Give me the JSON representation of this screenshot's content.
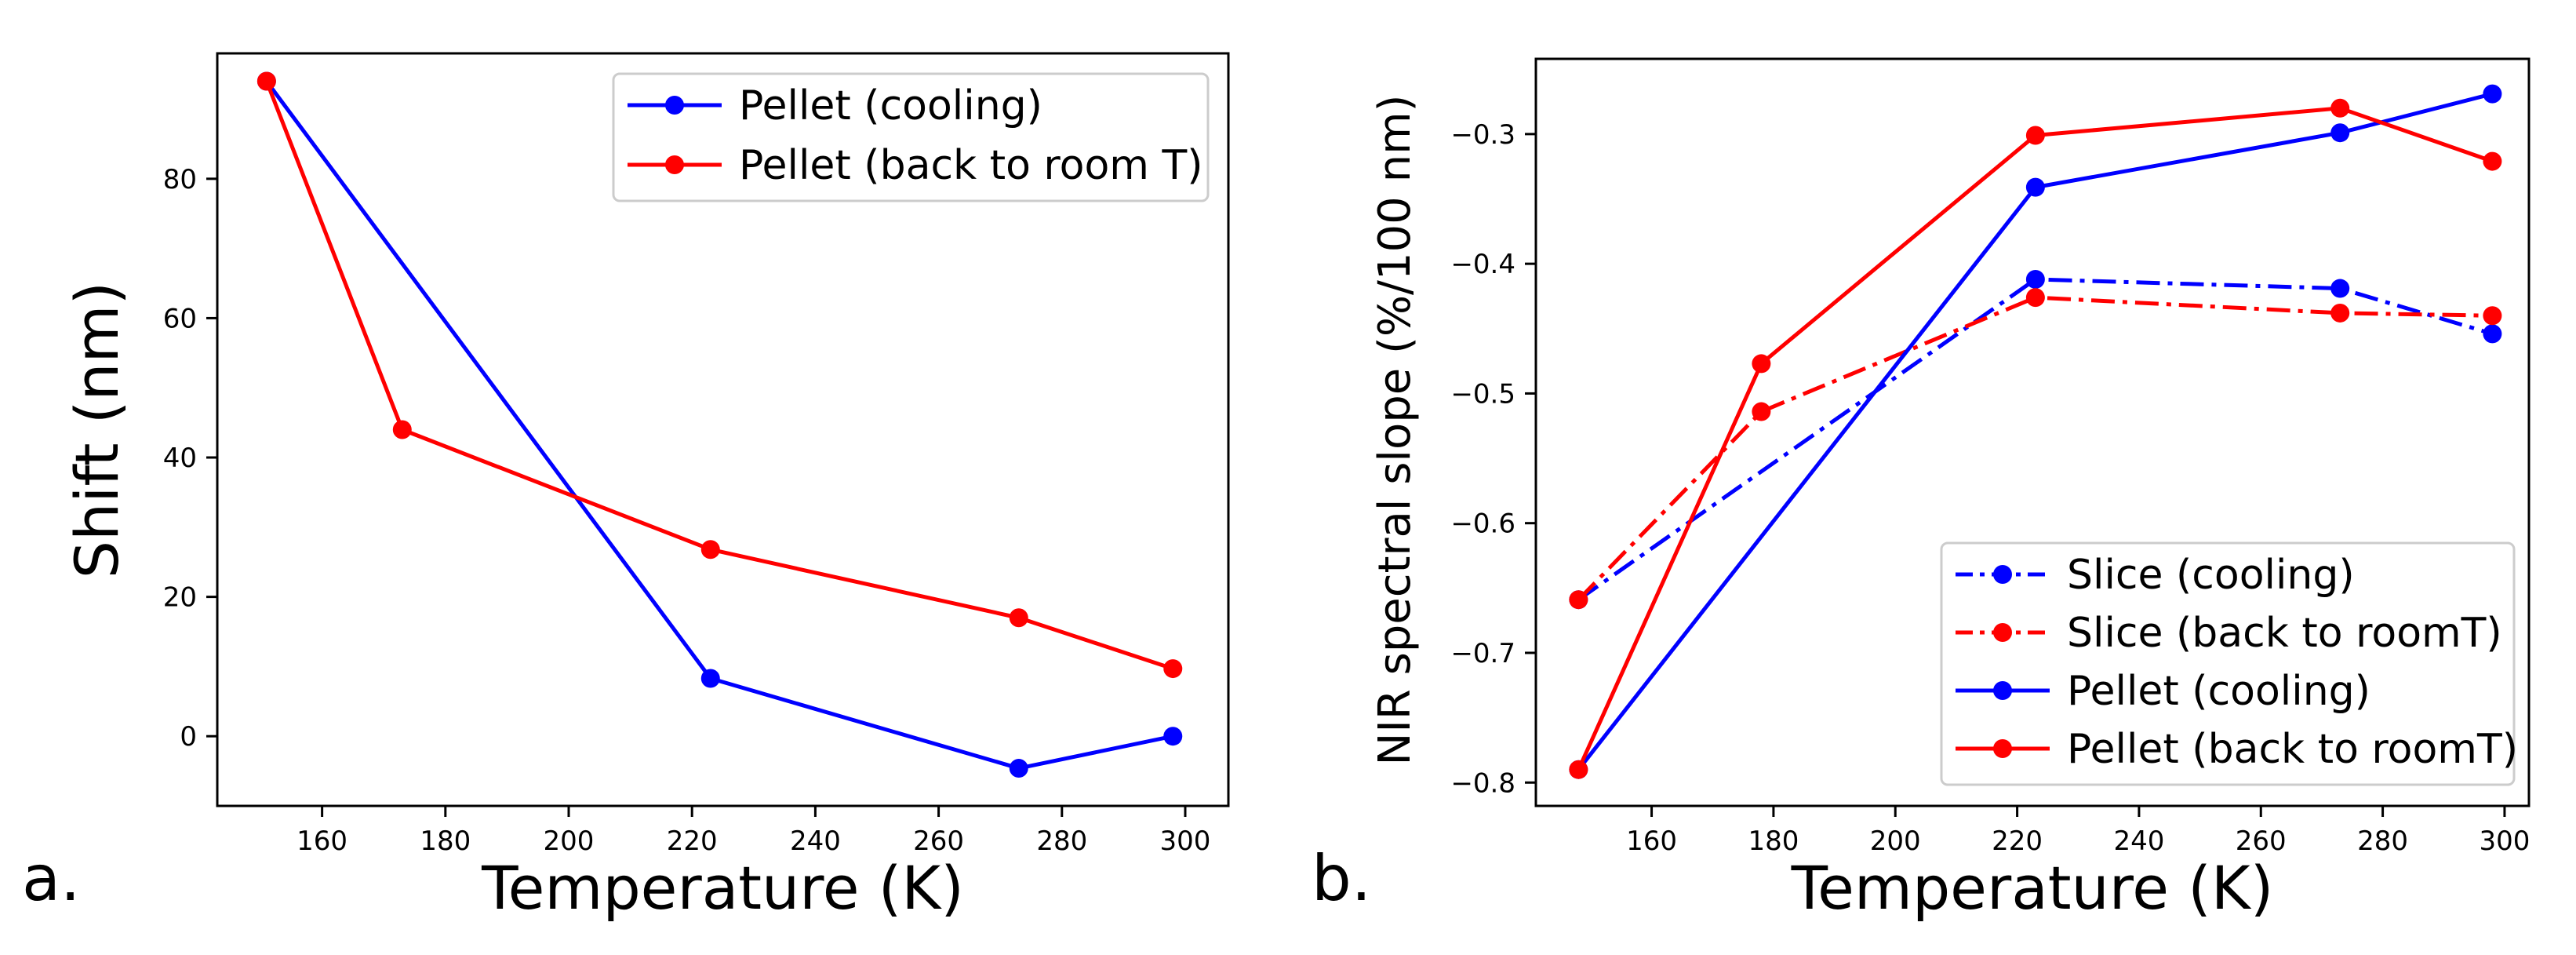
{
  "chart_data": [
    {
      "panel_label": "a.",
      "type": "line",
      "title": "",
      "xlabel": "Temperature (K)",
      "ylabel": "Shift (nm)",
      "xlim": [
        143,
        307
      ],
      "ylim": [
        -10,
        98
      ],
      "xticks": [
        160,
        180,
        200,
        220,
        240,
        260,
        280,
        300
      ],
      "xtick_labels": [
        "160",
        "180",
        "200",
        "220",
        "240",
        "260",
        "280",
        "300"
      ],
      "yticks": [
        0,
        20,
        40,
        60,
        80
      ],
      "ytick_labels": [
        "0",
        "20",
        "40",
        "60",
        "80"
      ],
      "grid": false,
      "legend_position": "top-right",
      "series": [
        {
          "name": "Pellet (cooling)",
          "color": "#0000ff",
          "linestyle": "solid",
          "x": [
            151,
            223,
            273,
            298
          ],
          "y": [
            94,
            8.3,
            -4.6,
            0
          ]
        },
        {
          "name": "Pellet (back to room T)",
          "color": "#ff0000",
          "linestyle": "solid",
          "x": [
            151,
            173,
            223,
            273,
            298
          ],
          "y": [
            94,
            44,
            26.8,
            17,
            9.7
          ]
        }
      ]
    },
    {
      "panel_label": "b.",
      "type": "line",
      "title": "",
      "xlabel": "Temperature (K)",
      "ylabel": "NIR spectral slope (%/100 nm)",
      "xlim": [
        141,
        304
      ],
      "ylim": [
        -0.818,
        -0.242
      ],
      "xticks": [
        160,
        180,
        200,
        220,
        240,
        260,
        280,
        300
      ],
      "xtick_labels": [
        "160",
        "180",
        "200",
        "220",
        "240",
        "260",
        "280",
        "300"
      ],
      "yticks": [
        -0.8,
        -0.7,
        -0.6,
        -0.5,
        -0.4,
        -0.3
      ],
      "ytick_labels": [
        "−0.8",
        "−0.7",
        "−0.6",
        "−0.5",
        "−0.4",
        "−0.3"
      ],
      "grid": false,
      "legend_position": "bottom-right",
      "series": [
        {
          "name": "Slice (cooling)",
          "color": "#0000ff",
          "linestyle": "dashdot",
          "x": [
            148,
            223,
            273,
            298
          ],
          "y": [
            -0.659,
            -0.412,
            -0.419,
            -0.454
          ]
        },
        {
          "name": "Slice (back to roomT)",
          "color": "#ff0000",
          "linestyle": "dashdot",
          "x": [
            148,
            178,
            223,
            273,
            298
          ],
          "y": [
            -0.659,
            -0.514,
            -0.426,
            -0.438,
            -0.44
          ]
        },
        {
          "name": "Pellet (cooling)",
          "color": "#0000ff",
          "linestyle": "solid",
          "x": [
            148,
            223,
            273,
            298
          ],
          "y": [
            -0.79,
            -0.341,
            -0.299,
            -0.269
          ]
        },
        {
          "name": "Pellet (back to roomT)",
          "color": "#ff0000",
          "linestyle": "solid",
          "x": [
            148,
            178,
            223,
            273,
            298
          ],
          "y": [
            -0.79,
            -0.477,
            -0.301,
            -0.28,
            -0.321
          ]
        }
      ]
    }
  ]
}
